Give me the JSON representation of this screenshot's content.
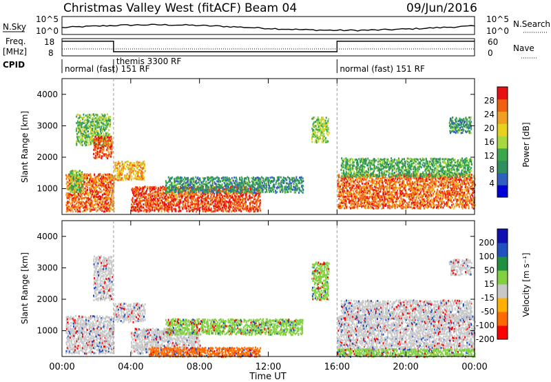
{
  "header": {
    "station": "Christmas Valley West (fitACF)",
    "beam": "Beam 04",
    "date": "09/Jun/2016"
  },
  "nsky_panel": {
    "left_label": "N.Sky",
    "right_label": "N.Search",
    "left_ticks": [
      "10^5",
      "10^0"
    ],
    "right_ticks": [
      "10^5",
      "10^0"
    ]
  },
  "freq_panel": {
    "left_label_line1": "Freq.",
    "left_label_line2": "[MHz]",
    "right_label": "Nave",
    "left_ticks": [
      "18",
      "8"
    ],
    "right_ticks": [
      "60",
      "0"
    ],
    "cpid_label": "CPID",
    "cpid_segments": [
      {
        "label": "normal (fast)  151 RF",
        "start_hr": 0,
        "end_hr": 3.0
      },
      {
        "label": "themis 3300 RF",
        "start_hr": 3.0,
        "end_hr": 16.0
      },
      {
        "label": "normal (fast)  151 RF",
        "start_hr": 16.0,
        "end_hr": 24.0
      }
    ],
    "freq_steps": [
      {
        "start_hr": 0,
        "end_hr": 3.0,
        "freq_mhz": 16.5
      },
      {
        "start_hr": 3.0,
        "end_hr": 16.0,
        "freq_mhz": 10.4
      },
      {
        "start_hr": 16.0,
        "end_hr": 24.0,
        "freq_mhz": 16.5
      }
    ]
  },
  "chart_data": [
    {
      "type": "heatmap",
      "quantity": "power",
      "x_axis_hours": [
        0,
        24
      ],
      "ylabel": "Slant Range [km]",
      "ylim": [
        180,
        4500
      ],
      "yticks": [
        "1000",
        "2000",
        "3000",
        "4000"
      ],
      "colorbar_label": "Power [dB]",
      "colorbar_ticks": [
        "4",
        "8",
        "12",
        "16",
        "20",
        "24",
        "28"
      ],
      "colorbar_range": [
        0,
        32
      ],
      "regions": [
        {
          "t0": 0.2,
          "t1": 3.0,
          "r0": 300,
          "r1": 1500,
          "level": 26
        },
        {
          "t0": 0.4,
          "t1": 1.2,
          "r0": 900,
          "r1": 1600,
          "level": 14
        },
        {
          "t0": 0.8,
          "t1": 2.8,
          "r0": 2400,
          "r1": 3400,
          "level": 14
        },
        {
          "t0": 1.8,
          "t1": 2.9,
          "r0": 2000,
          "r1": 2700,
          "level": 28
        },
        {
          "t0": 3.0,
          "t1": 4.8,
          "r0": 1300,
          "r1": 1900,
          "level": 22
        },
        {
          "t0": 4.0,
          "t1": 11.5,
          "r0": 300,
          "r1": 1100,
          "level": 28
        },
        {
          "t0": 6.0,
          "t1": 14.0,
          "r0": 900,
          "r1": 1400,
          "level": 10
        },
        {
          "t0": 14.5,
          "t1": 15.5,
          "r0": 2500,
          "r1": 3300,
          "level": 16
        },
        {
          "t0": 16.0,
          "t1": 24.0,
          "r0": 400,
          "r1": 1500,
          "level": 26
        },
        {
          "t0": 16.2,
          "t1": 23.8,
          "r0": 1400,
          "r1": 2000,
          "level": 12
        },
        {
          "t0": 22.5,
          "t1": 23.8,
          "r0": 2800,
          "r1": 3300,
          "level": 10
        }
      ]
    },
    {
      "type": "heatmap",
      "quantity": "velocity",
      "x_axis_hours": [
        0,
        24
      ],
      "xticks": [
        "00:00",
        "04:00",
        "08:00",
        "12:00",
        "16:00",
        "20:00",
        "00:00"
      ],
      "xlabel": "Time UT",
      "ylabel": "Slant Range [km]",
      "ylim": [
        180,
        4500
      ],
      "yticks": [
        "1000",
        "2000",
        "3000",
        "4000"
      ],
      "colorbar_label": "Velocity [m s⁻¹]",
      "colorbar_ticks": [
        "200",
        "100",
        "50",
        "15",
        "-15",
        "-50",
        "-100",
        "-200"
      ],
      "regions": [
        {
          "t0": 0.2,
          "t1": 3.0,
          "r0": 300,
          "r1": 1500,
          "v": 0
        },
        {
          "t0": 1.8,
          "t1": 2.9,
          "r0": 2000,
          "r1": 3400,
          "v": 0
        },
        {
          "t0": 3.0,
          "t1": 4.8,
          "r0": 1300,
          "r1": 1900,
          "v": 0
        },
        {
          "t0": 4.0,
          "t1": 8.0,
          "r0": 300,
          "r1": 1100,
          "v": 0
        },
        {
          "t0": 5.0,
          "t1": 11.5,
          "r0": 200,
          "r1": 500,
          "v": -70
        },
        {
          "t0": 6.0,
          "t1": 14.0,
          "r0": 900,
          "r1": 1400,
          "v": 30
        },
        {
          "t0": 14.5,
          "t1": 15.5,
          "r0": 2000,
          "r1": 3200,
          "v": 30
        },
        {
          "t0": 16.0,
          "t1": 24.0,
          "r0": 400,
          "r1": 1500,
          "v": 0
        },
        {
          "t0": 16.2,
          "t1": 23.8,
          "r0": 1400,
          "r1": 2000,
          "v": 10
        },
        {
          "t0": 16.0,
          "t1": 24.0,
          "r0": 200,
          "r1": 450,
          "v": 40
        },
        {
          "t0": 22.5,
          "t1": 23.8,
          "r0": 2800,
          "r1": 3300,
          "v": 0
        }
      ]
    }
  ],
  "colors": {
    "power_scale": [
      "#0000d8",
      "#2f5fc0",
      "#2f8f5f",
      "#3aa84a",
      "#a8d840",
      "#e8d020",
      "#f0a020",
      "#f06010",
      "#e81010"
    ],
    "velocity_scale": [
      "#ff0000",
      "#ff6a00",
      "#ffb000",
      "#c8c8c8",
      "#80d040",
      "#209040",
      "#2050c0",
      "#1010b0"
    ]
  }
}
